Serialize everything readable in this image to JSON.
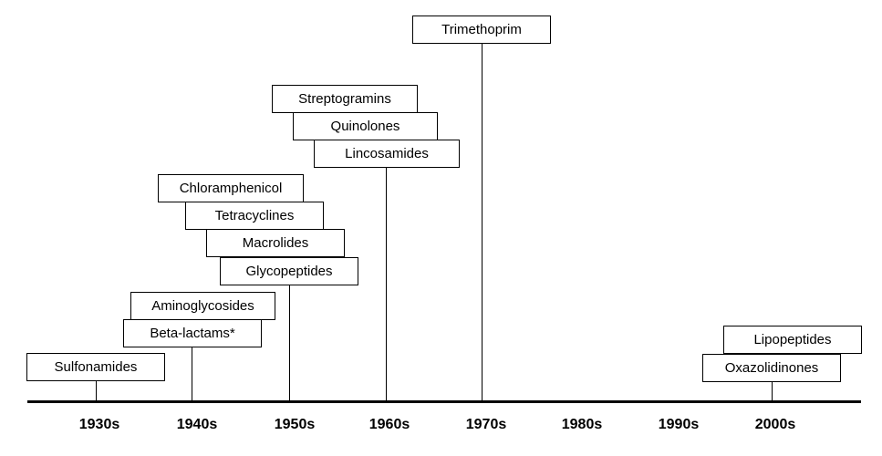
{
  "decades": [
    "1930s",
    "1940s",
    "1950s",
    "1960s",
    "1970s",
    "1980s",
    "1990s",
    "2000s"
  ],
  "classes": [
    "Trimethoprim",
    "Streptogramins",
    "Quinolones",
    "Lincosamides",
    "Chloramphenicol",
    "Tetracyclines",
    "Macrolides",
    "Glycopeptides",
    "Aminoglycosides",
    "Beta-lactams*",
    "Sulfonamides",
    "Lipopeptides",
    "Oxazolidinones"
  ]
}
